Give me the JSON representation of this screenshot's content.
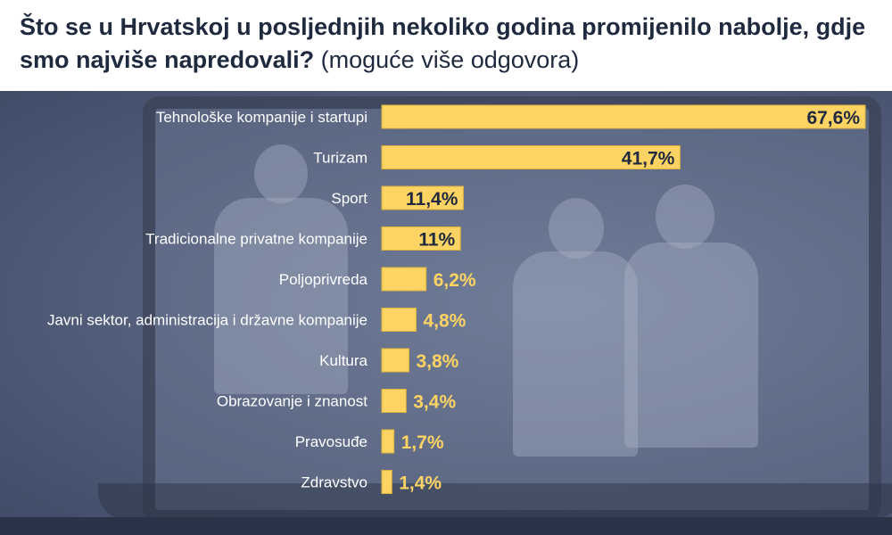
{
  "header": {
    "title_bold": "Što se u Hrvatskoj u posljednjih nekoliko godina promijenilo nabolje, gdje smo najviše napredovali?",
    "title_sub": "(moguće više odgovora)"
  },
  "colors": {
    "bar": "#fdd463",
    "bar_outline": "#e0b43c",
    "value_inside": "#1f2a3f",
    "value_outside": "#fdd463",
    "label": "#ffffff"
  },
  "chart_data": {
    "type": "bar",
    "orientation": "horizontal",
    "title": "Što se u Hrvatskoj u posljednjih nekoliko godina promijenilo nabolje, gdje smo najviše napredovali? (moguće više odgovora)",
    "categories": [
      "Tehnološke kompanije i startupi",
      "Turizam",
      "Sport",
      "Tradicionalne privatne kompanije",
      "Poljoprivreda",
      "Javni sektor, administracija i državne kompanije",
      "Kultura",
      "Obrazovanje i znanost",
      "Pravosuđe",
      "Zdravstvo"
    ],
    "values": [
      67.6,
      41.7,
      11.4,
      11,
      6.2,
      4.8,
      3.8,
      3.4,
      1.7,
      1.4
    ],
    "value_labels": [
      "67,6%",
      "41,7%",
      "11,4%",
      "11%",
      "6,2%",
      "4,8%",
      "3,8%",
      "3,4%",
      "1,7%",
      "1,4%"
    ],
    "xlim": [
      0,
      67.6
    ],
    "grid": false,
    "legend": "none"
  }
}
